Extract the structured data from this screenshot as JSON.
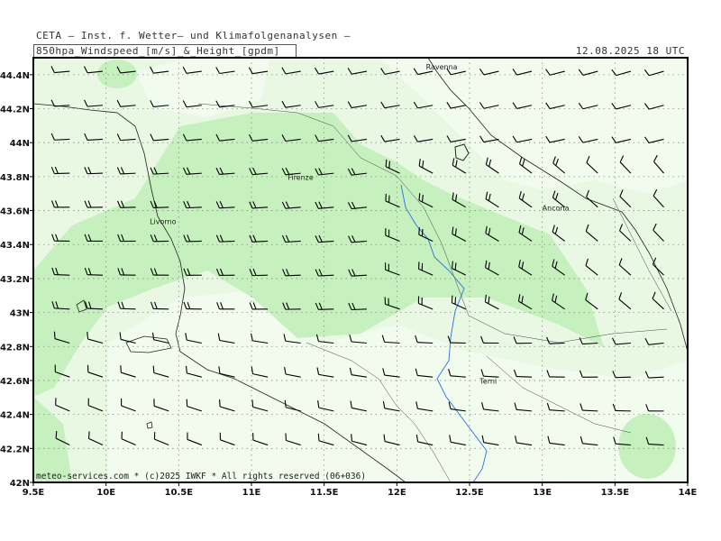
{
  "header": {
    "line1": "CETA – Inst. f. Wetter– und Klimafolgenanalysen –",
    "line2": "850hpa_Windspeed_[m/s]_&_Height_[gpdm]",
    "datetime": "12.08.2025 18 UTC"
  },
  "footer": "meteo-services.com * (c)2025 IWKF * All rights reserved (06+036)",
  "axes": {
    "x_ticks": [
      "9.5E",
      "10E",
      "10.5E",
      "11E",
      "11.5E",
      "12E",
      "12.5E",
      "13E",
      "13.5E",
      "14E"
    ],
    "y_ticks": [
      "42N",
      "42.2N",
      "42.4N",
      "42.6N",
      "42.8N",
      "43N",
      "43.2N",
      "43.4N",
      "43.6N",
      "43.8N",
      "44N",
      "44.2N",
      "44.4N"
    ]
  },
  "cities": [
    {
      "name": "Ravenna",
      "lon": 12.2,
      "lat": 44.43
    },
    {
      "name": "Firenze",
      "lon": 11.25,
      "lat": 43.78
    },
    {
      "name": "Livorno",
      "lon": 10.3,
      "lat": 43.52
    },
    {
      "name": "Ancona",
      "lon": 13.0,
      "lat": 43.6
    },
    {
      "name": "Terni",
      "lon": 12.57,
      "lat": 42.58
    }
  ],
  "colors": {
    "background_field": "#e8f8e3",
    "light_wind": "#f1fbee",
    "stronger_wind": "#c6f0bd",
    "strongest_wind": "#b4e8aa",
    "barb": "#000000",
    "coast": "#222222",
    "river": "#2a6fe0",
    "grid": "#8a8a8a"
  }
}
